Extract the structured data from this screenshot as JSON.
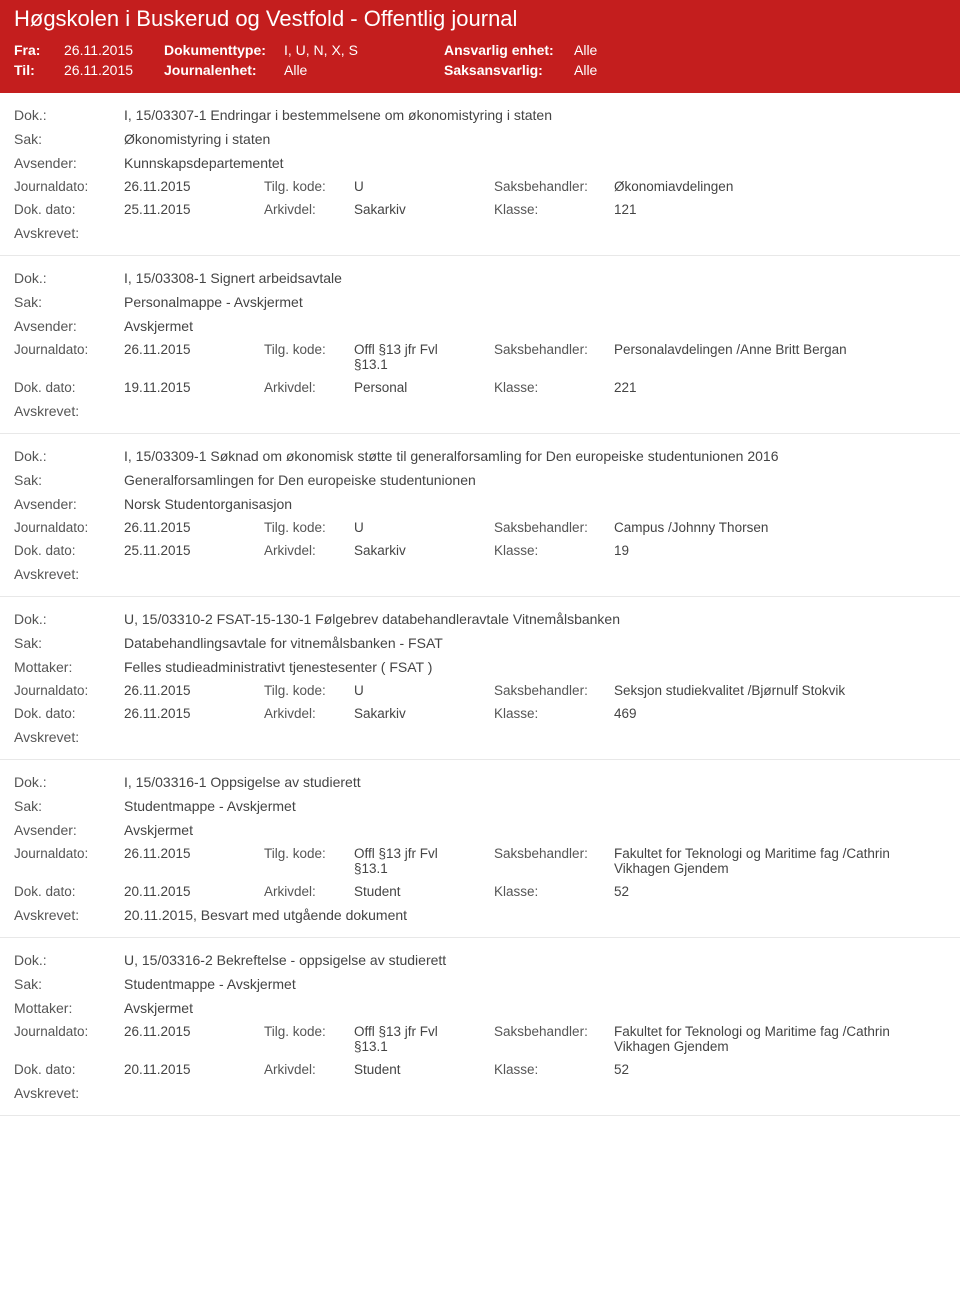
{
  "header": {
    "title": "Høgskolen i Buskerud og Vestfold - Offentlig journal",
    "fra_label": "Fra:",
    "fra_value": "26.11.2015",
    "til_label": "Til:",
    "til_value": "26.11.2015",
    "dokumenttype_label": "Dokumenttype:",
    "dokumenttype_value": "I, U, N, X, S",
    "journalenhet_label": "Journalenhet:",
    "journalenhet_value": "Alle",
    "ansvarlig_enhet_label": "Ansvarlig enhet:",
    "ansvarlig_enhet_value": "Alle",
    "saksansvarlig_label": "Saksansvarlig:",
    "saksansvarlig_value": "Alle"
  },
  "labels": {
    "dok": "Dok.:",
    "sak": "Sak:",
    "avsender": "Avsender:",
    "mottaker": "Mottaker:",
    "journaldato": "Journaldato:",
    "dok_dato": "Dok. dato:",
    "tilg_kode": "Tilg. kode:",
    "arkivdel": "Arkivdel:",
    "saksbehandler": "Saksbehandler:",
    "klasse": "Klasse:",
    "avskrevet": "Avskrevet:"
  },
  "entries": [
    {
      "dok": "I, 15/03307-1 Endringar i bestemmelsene om økonomistyring i staten",
      "sak": "Økonomistyring i staten",
      "party_label": "Avsender:",
      "party_value": "Kunnskapsdepartementet",
      "journaldato": "26.11.2015",
      "tilg_kode": "U",
      "saksbehandler": "Økonomiavdelingen",
      "dok_dato": "25.11.2015",
      "arkivdel": "Sakarkiv",
      "klasse": "121",
      "avskrevet": ""
    },
    {
      "dok": "I, 15/03308-1 Signert arbeidsavtale",
      "sak": "Personalmappe - Avskjermet",
      "party_label": "Avsender:",
      "party_value": "Avskjermet",
      "journaldato": "26.11.2015",
      "tilg_kode": "Offl §13 jfr Fvl §13.1",
      "saksbehandler": "Personalavdelingen /Anne Britt Bergan",
      "dok_dato": "19.11.2015",
      "arkivdel": "Personal",
      "klasse": "221",
      "avskrevet": ""
    },
    {
      "dok": "I, 15/03309-1 Søknad om økonomisk støtte til generalforsamling for Den europeiske studentunionen 2016",
      "sak": "Generalforsamlingen for Den europeiske studentunionen",
      "party_label": "Avsender:",
      "party_value": "Norsk Studentorganisasjon",
      "journaldato": "26.11.2015",
      "tilg_kode": "U",
      "saksbehandler": "Campus /Johnny Thorsen",
      "dok_dato": "25.11.2015",
      "arkivdel": "Sakarkiv",
      "klasse": "19",
      "avskrevet": ""
    },
    {
      "dok": "U, 15/03310-2 FSAT-15-130-1 Følgebrev databehandleravtale Vitnemålsbanken",
      "sak": "Databehandlingsavtale for vitnemålsbanken - FSAT",
      "party_label": "Mottaker:",
      "party_value": "Felles studieadministrativt tjenestesenter ( FSAT )",
      "journaldato": "26.11.2015",
      "tilg_kode": "U",
      "saksbehandler": "Seksjon studiekvalitet /Bjørnulf Stokvik",
      "dok_dato": "26.11.2015",
      "arkivdel": "Sakarkiv",
      "klasse": "469",
      "avskrevet": ""
    },
    {
      "dok": "I, 15/03316-1 Oppsigelse av studierett",
      "sak": "Studentmappe - Avskjermet",
      "party_label": "Avsender:",
      "party_value": "Avskjermet",
      "journaldato": "26.11.2015",
      "tilg_kode": "Offl §13 jfr Fvl §13.1",
      "saksbehandler": "Fakultet for Teknologi og Maritime fag /Cathrin Vikhagen Gjendem",
      "dok_dato": "20.11.2015",
      "arkivdel": "Student",
      "klasse": "52",
      "avskrevet": "20.11.2015, Besvart med utgående dokument"
    },
    {
      "dok": "U, 15/03316-2 Bekreftelse - oppsigelse av studierett",
      "sak": "Studentmappe - Avskjermet",
      "party_label": "Mottaker:",
      "party_value": "Avskjermet",
      "journaldato": "26.11.2015",
      "tilg_kode": "Offl §13 jfr Fvl §13.1",
      "saksbehandler": "Fakultet for Teknologi og Maritime fag /Cathrin Vikhagen Gjendem",
      "dok_dato": "20.11.2015",
      "arkivdel": "Student",
      "klasse": "52",
      "avskrevet": ""
    }
  ]
}
